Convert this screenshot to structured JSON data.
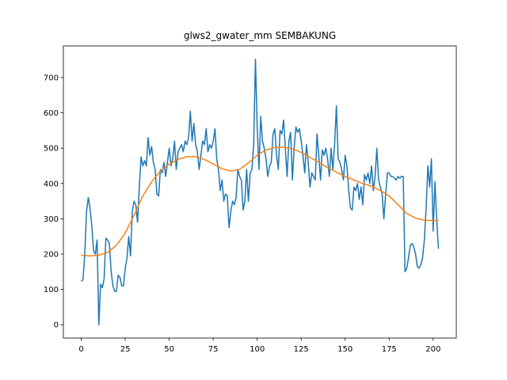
{
  "chart_data": {
    "type": "line",
    "title": "glws2_gwater_mm SEMBAKUNG",
    "xlim": [
      -10.15,
      213.15
    ],
    "xticks": [
      0,
      25,
      50,
      75,
      100,
      125,
      150,
      175,
      200
    ],
    "ylim": [
      -37.6,
      789.6
    ],
    "yticks": [
      0,
      100,
      200,
      300,
      400,
      500,
      600,
      700
    ],
    "series": [
      {
        "color": "#1f77b4",
        "x": [
          0,
          1,
          2,
          3,
          4,
          5,
          6,
          7,
          8,
          9,
          10,
          11,
          12,
          13,
          14,
          15,
          16,
          17,
          18,
          19,
          20,
          21,
          22,
          23,
          24,
          25,
          26,
          27,
          28,
          29,
          30,
          31,
          32,
          33,
          34,
          35,
          36,
          37,
          38,
          39,
          40,
          41,
          42,
          43,
          44,
          45,
          46,
          47,
          48,
          49,
          50,
          51,
          52,
          53,
          54,
          55,
          56,
          57,
          58,
          59,
          60,
          61,
          62,
          63,
          64,
          65,
          66,
          67,
          68,
          69,
          70,
          71,
          72,
          73,
          74,
          75,
          76,
          77,
          78,
          79,
          80,
          81,
          82,
          83,
          84,
          85,
          86,
          87,
          88,
          89,
          90,
          91,
          92,
          93,
          94,
          95,
          96,
          97,
          98,
          99,
          100,
          101,
          102,
          103,
          104,
          105,
          106,
          107,
          108,
          109,
          110,
          111,
          112,
          113,
          114,
          115,
          116,
          117,
          118,
          119,
          120,
          121,
          122,
          123,
          124,
          125,
          126,
          127,
          128,
          129,
          130,
          131,
          132,
          133,
          134,
          135,
          136,
          137,
          138,
          139,
          140,
          141,
          142,
          143,
          144,
          145,
          146,
          147,
          148,
          149,
          150,
          151,
          152,
          153,
          154,
          155,
          156,
          157,
          158,
          159,
          160,
          161,
          162,
          163,
          164,
          165,
          166,
          167,
          168,
          169,
          170,
          171,
          172,
          173,
          174,
          175,
          176,
          177,
          178,
          179,
          180,
          181,
          182,
          183,
          184,
          185,
          186,
          187,
          188,
          189,
          190,
          191,
          192,
          193,
          194,
          195,
          196,
          197,
          198,
          199,
          200,
          201,
          202,
          203
        ],
        "values": [
          123,
          128,
          200,
          320,
          360,
          330,
          280,
          210,
          200,
          240,
          0,
          115,
          105,
          130,
          245,
          240,
          230,
          150,
          110,
          95,
          95,
          140,
          135,
          110,
          110,
          160,
          190,
          250,
          195,
          320,
          350,
          340,
          290,
          390,
          475,
          450,
          465,
          450,
          530,
          480,
          505,
          460,
          440,
          370,
          365,
          440,
          430,
          460,
          420,
          460,
          500,
          450,
          470,
          520,
          440,
          490,
          500,
          510,
          490,
          520,
          510,
          530,
          605,
          520,
          570,
          510,
          490,
          440,
          480,
          520,
          510,
          555,
          490,
          510,
          500,
          520,
          555,
          470,
          440,
          380,
          410,
          350,
          370,
          365,
          275,
          320,
          350,
          340,
          360,
          440,
          420,
          410,
          325,
          350,
          440,
          350,
          430,
          440,
          510,
          752,
          560,
          440,
          590,
          520,
          500,
          470,
          420,
          450,
          460,
          540,
          555,
          480,
          440,
          550,
          540,
          580,
          500,
          420,
          520,
          545,
          410,
          500,
          560,
          545,
          555,
          520,
          480,
          430,
          510,
          460,
          390,
          430,
          420,
          410,
          540,
          480,
          410,
          495,
          480,
          500,
          470,
          420,
          500,
          440,
          510,
          620,
          470,
          460,
          440,
          410,
          480,
          450,
          380,
          330,
          325,
          390,
          380,
          400,
          355,
          390,
          340,
          425,
          410,
          430,
          400,
          450,
          380,
          420,
          500,
          410,
          390,
          370,
          300,
          370,
          430,
          430,
          420,
          420,
          415,
          410,
          420,
          415,
          420,
          420,
          150,
          160,
          190,
          225,
          230,
          220,
          200,
          165,
          160,
          170,
          190,
          240,
          330,
          450,
          390,
          470,
          265,
          405,
          300,
          215
        ]
      },
      {
        "color": "#ff7f0e",
        "x": [
          0,
          5,
          10,
          15,
          20,
          25,
          30,
          35,
          40,
          45,
          50,
          55,
          60,
          65,
          70,
          75,
          80,
          85,
          90,
          95,
          100,
          105,
          110,
          115,
          120,
          125,
          130,
          135,
          140,
          145,
          150,
          155,
          160,
          165,
          170,
          175,
          180,
          185,
          190,
          195,
          200,
          203
        ],
        "values": [
          197,
          195,
          197,
          205,
          225,
          260,
          310,
          365,
          405,
          435,
          455,
          468,
          476,
          476,
          468,
          455,
          442,
          435,
          440,
          458,
          480,
          495,
          502,
          503,
          498,
          488,
          474,
          460,
          445,
          432,
          420,
          410,
          400,
          392,
          380,
          365,
          340,
          315,
          302,
          296,
          295,
          295
        ]
      }
    ]
  }
}
